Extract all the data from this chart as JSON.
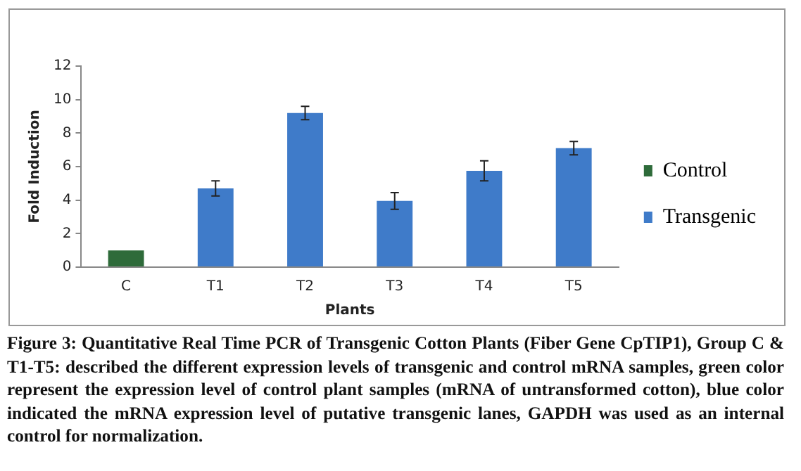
{
  "chart_data": {
    "type": "bar",
    "xlabel": "Plants",
    "ylabel": "Fold Induction",
    "categories": [
      "C",
      "T1",
      "T2",
      "T3",
      "T4",
      "T5"
    ],
    "series": [
      {
        "name": "Control",
        "color": "#2e6b3a",
        "values": [
          1.0,
          null,
          null,
          null,
          null,
          null
        ],
        "errors": [
          null,
          null,
          null,
          null,
          null,
          null
        ]
      },
      {
        "name": "Transgenic",
        "color": "#3f7bc9",
        "values": [
          null,
          4.7,
          9.2,
          3.95,
          5.75,
          7.1
        ],
        "errors": [
          null,
          0.45,
          0.4,
          0.5,
          0.6,
          0.4
        ]
      }
    ],
    "ylim": [
      0,
      12
    ],
    "yticks": [
      0,
      2,
      4,
      6,
      8,
      10,
      12
    ],
    "grid": false,
    "legend": "right",
    "annotations": [
      "Figure 3: Quantitative Real Time PCR of Transgenic Cotton Plants (Fiber Gene CpTIP1), Group C & T1-T5: described the different expression levels of transgenic and control mRNA samples, green color represent the expression level of control plant samples (mRNA of untransformed cotton), blue color indicated the mRNA expression level of putative transgenic lanes, GAPDH was used as an internal control for normalization."
    ]
  }
}
